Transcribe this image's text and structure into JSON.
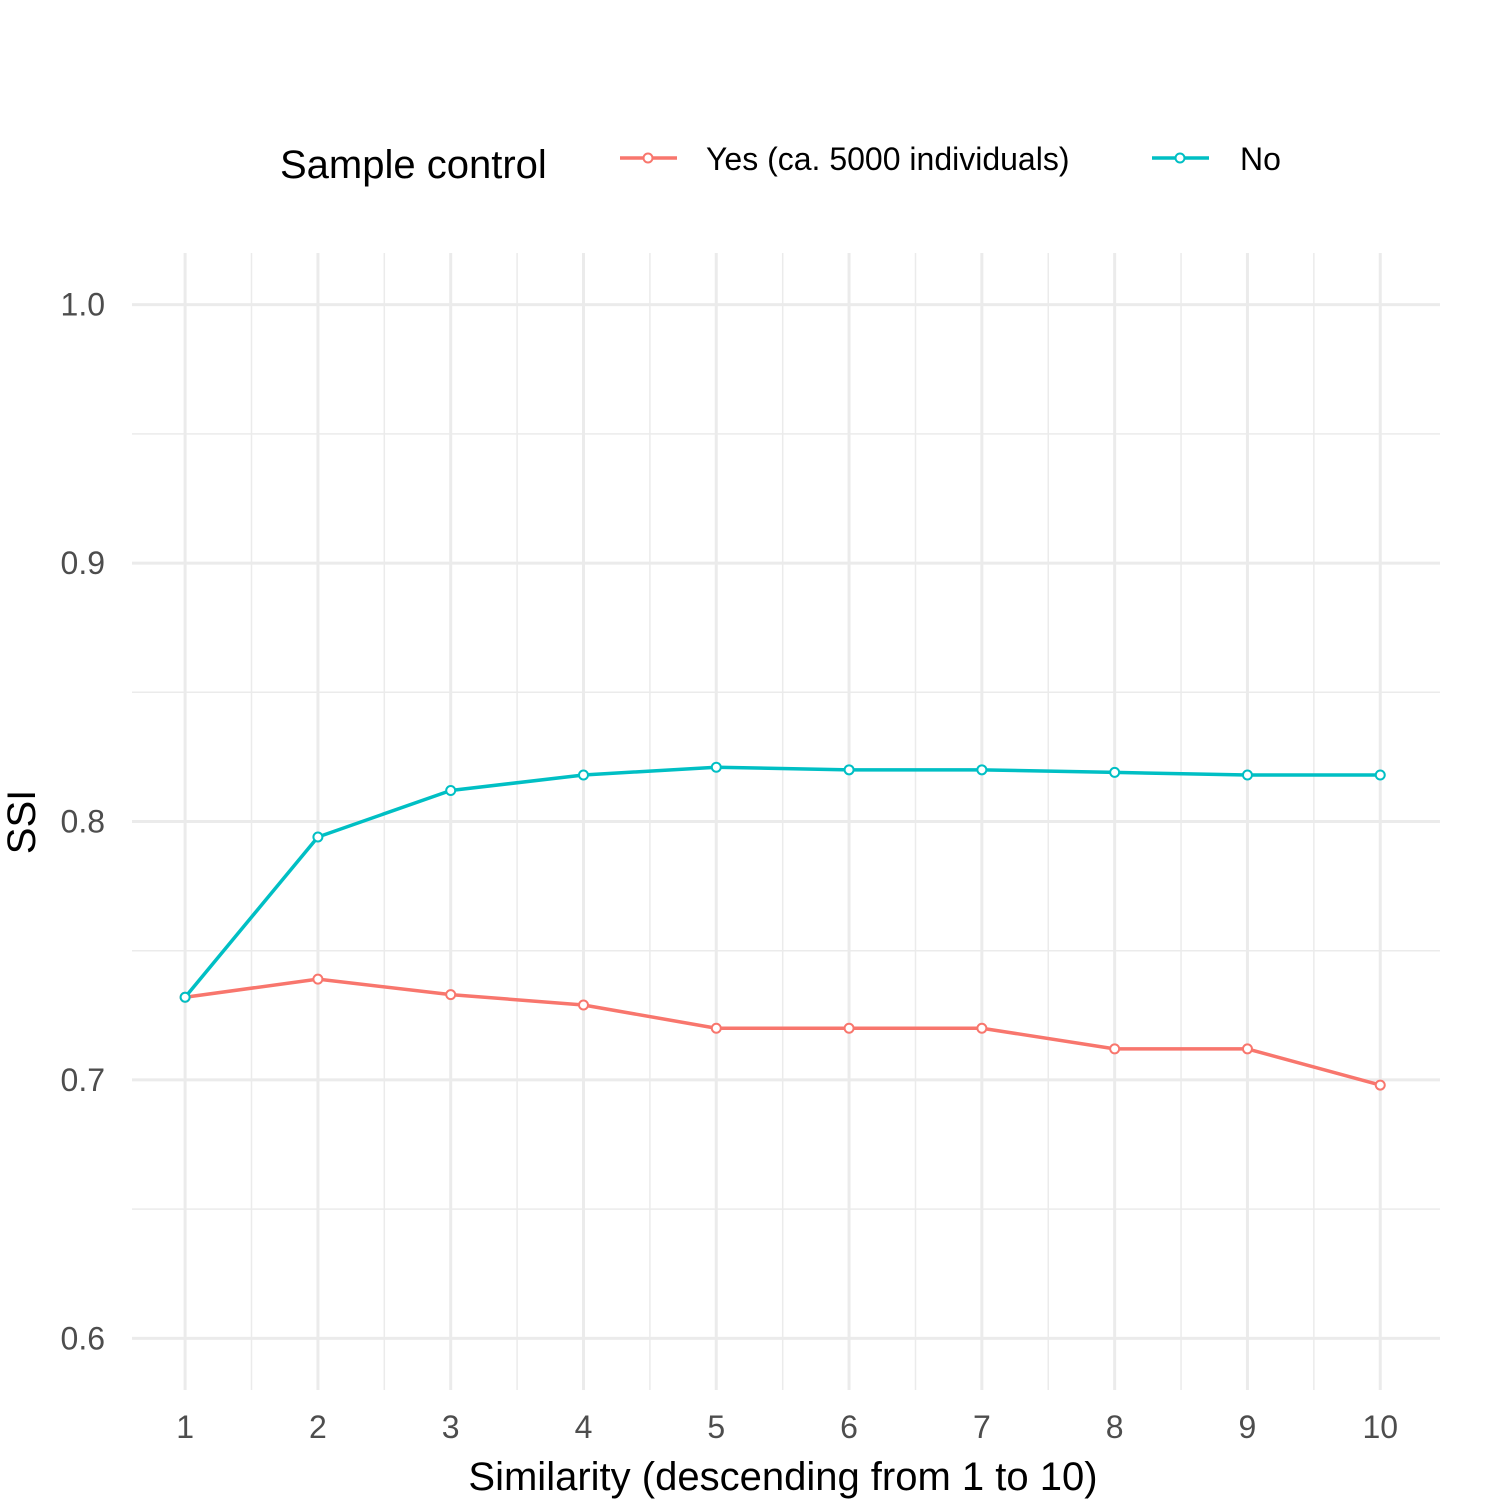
{
  "chart_data": {
    "type": "line",
    "title": "",
    "xlabel": "Similarity (descending from 1 to 10)",
    "ylabel": "SSI",
    "x": [
      1,
      2,
      3,
      4,
      5,
      6,
      7,
      8,
      9,
      10
    ],
    "x_ticks": [
      "1",
      "2",
      "3",
      "4",
      "5",
      "6",
      "7",
      "8",
      "9",
      "10"
    ],
    "xlim": [
      0.6,
      10.45
    ],
    "ylim": [
      0.58,
      1.02
    ],
    "y_ticks": [
      "0.6",
      "0.7",
      "0.8",
      "0.9",
      "1.0"
    ],
    "grid": true,
    "legend": {
      "title": "Sample control",
      "placement": "top"
    },
    "series": [
      {
        "name": "Yes (ca. 5000 individuals)",
        "color": "#F8766D",
        "values": [
          0.732,
          0.739,
          0.733,
          0.729,
          0.72,
          0.72,
          0.72,
          0.712,
          0.712,
          0.698
        ]
      },
      {
        "name": "No",
        "color": "#00BFC4",
        "values": [
          0.732,
          0.794,
          0.812,
          0.818,
          0.821,
          0.82,
          0.82,
          0.819,
          0.818,
          0.818
        ]
      }
    ]
  }
}
